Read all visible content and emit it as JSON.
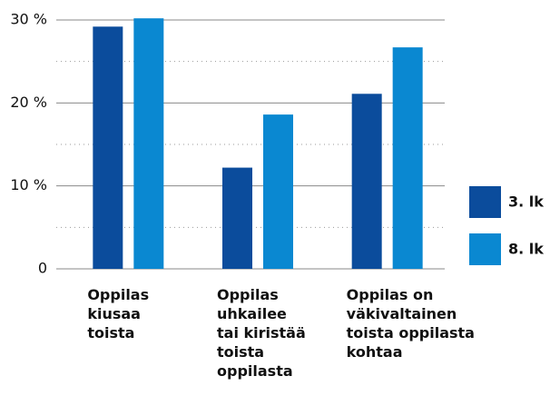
{
  "chart_data": {
    "type": "bar",
    "categories": [
      "Oppilas\nkiusaa\ntoista",
      "Oppilas\nuhkailee\ntai kiristää\ntoista\noppilasta",
      "Oppilas on\nväkivaltainen\ntoista oppilasta\nkohtaa"
    ],
    "series": [
      {
        "name": "3. lk",
        "color": "#0b4c9c",
        "values": [
          29.2,
          12.2,
          21.1
        ]
      },
      {
        "name": "8. lk",
        "color": "#0a88d1",
        "values": [
          30.2,
          18.6,
          26.7
        ]
      }
    ],
    "ylim": [
      0,
      30
    ],
    "yticks": [
      {
        "value": 0,
        "label": "0"
      },
      {
        "value": 10,
        "label": "10 %"
      },
      {
        "value": 20,
        "label": "20 %"
      },
      {
        "value": 30,
        "label": "30 %"
      }
    ],
    "minor_yticks": [
      5,
      15,
      25
    ],
    "grid": true,
    "legend": "right"
  }
}
